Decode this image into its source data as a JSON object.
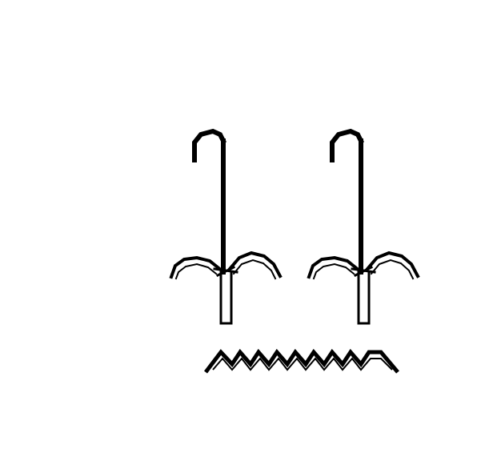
{
  "image": {
    "background": "#ffffff",
    "ink": "#000000",
    "glyphs": [
      {
        "name": "cane-with-drooping-leaves-glyph"
      },
      {
        "name": "cane-with-drooping-leaves-glyph"
      },
      {
        "name": "water-ripple-glyph"
      }
    ]
  }
}
